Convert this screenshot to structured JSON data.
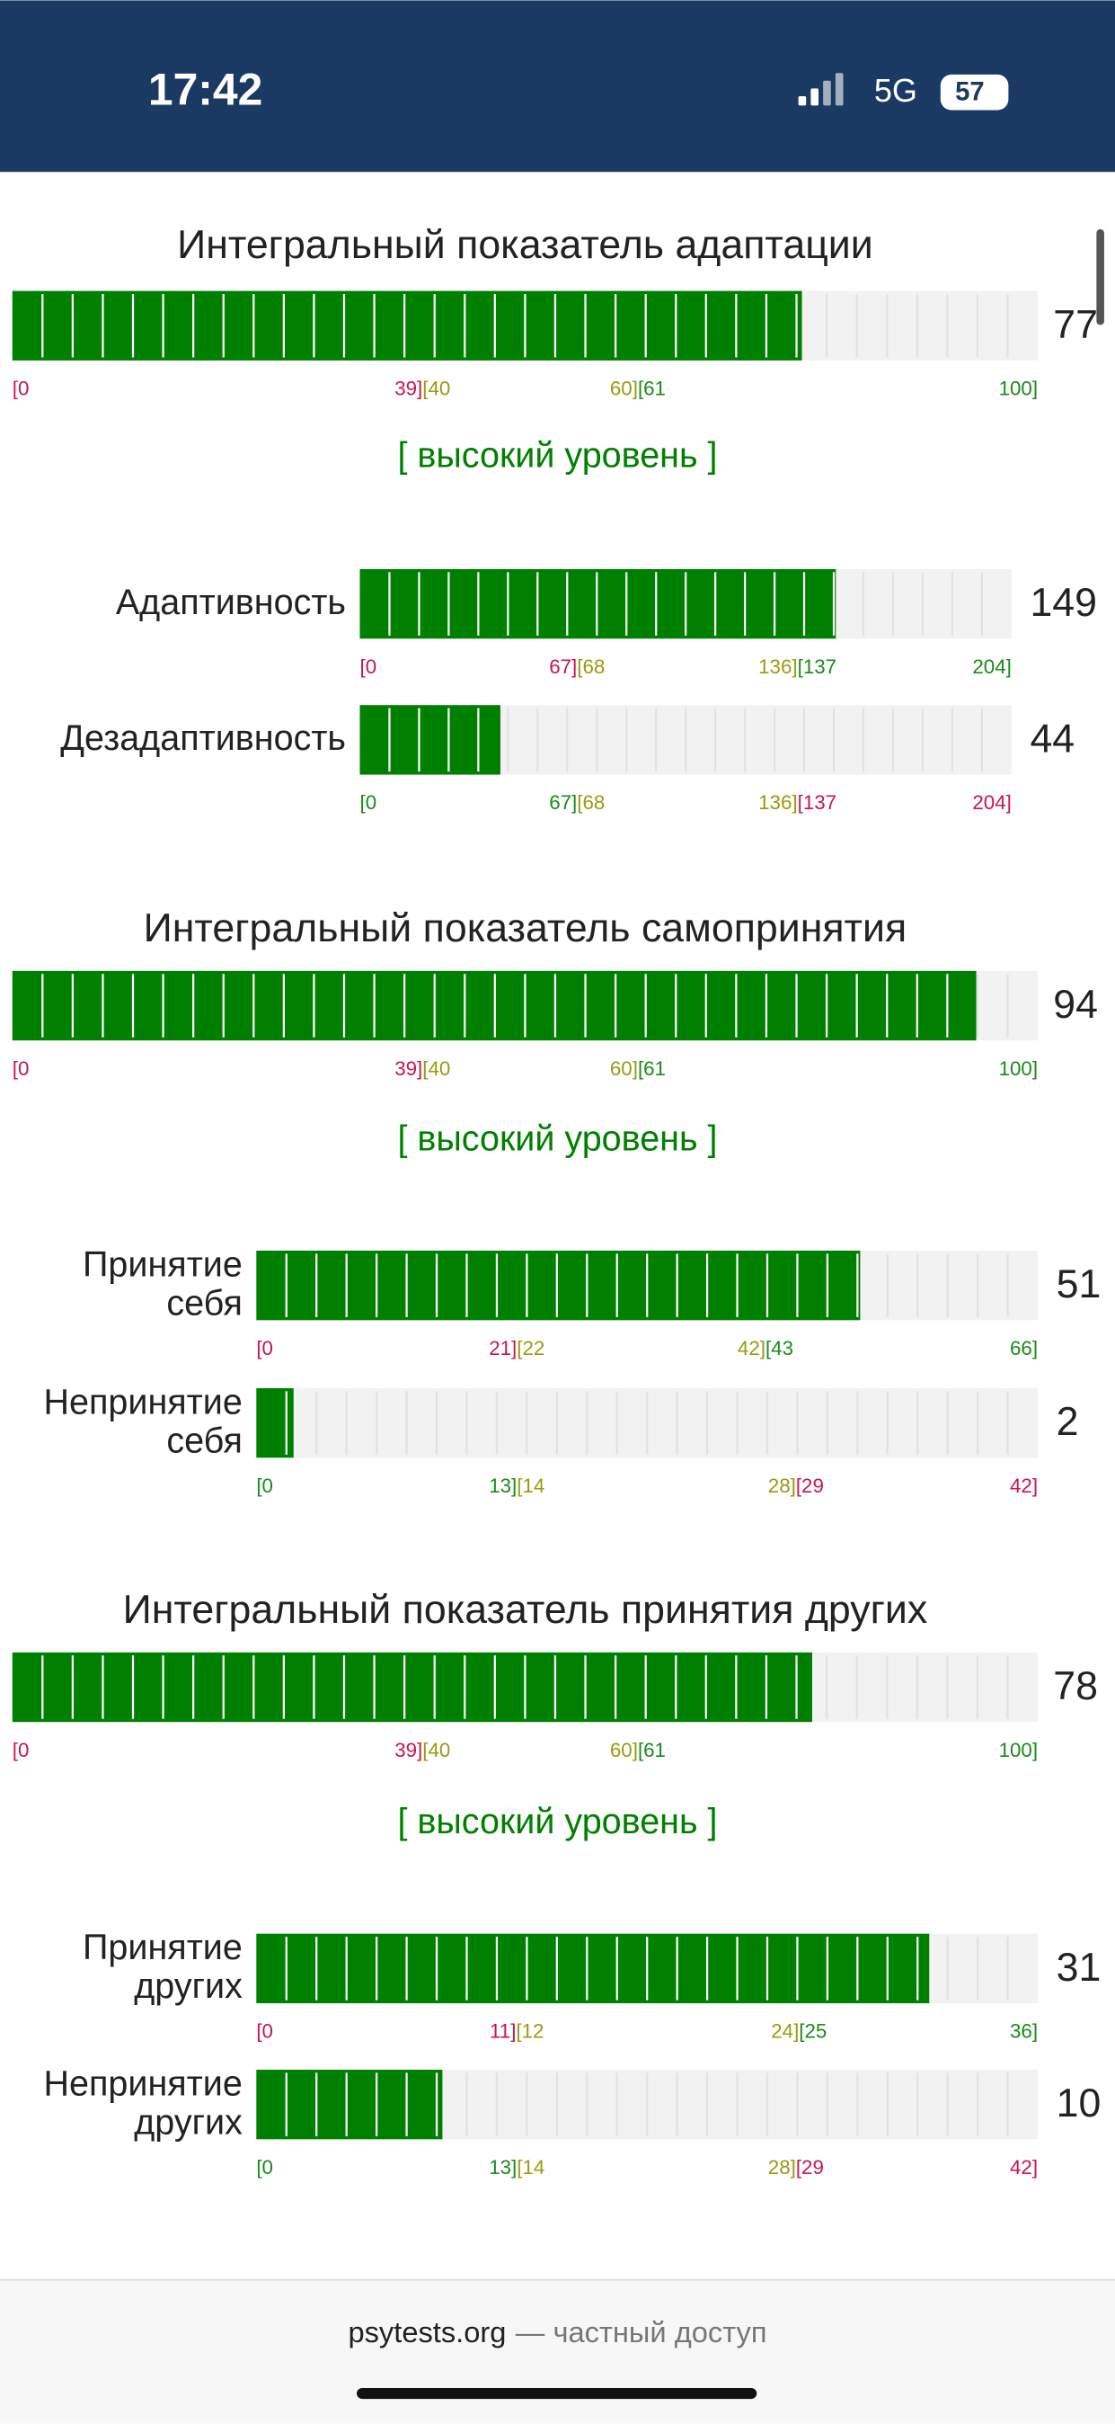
{
  "status_bar": {
    "time": "17:42",
    "network": "5G",
    "battery": "57"
  },
  "sections": [
    {
      "title": "Интегральный показатель адаптации",
      "bar": {
        "value": 77,
        "min": 0,
        "max": 100,
        "ticks": [
          {
            "value": 0,
            "parts": [
              {
                "text": "[0",
                "color": "#c8164c"
              }
            ]
          },
          {
            "value": 40,
            "parts": [
              {
                "text": "39]",
                "color": "#c8164c"
              },
              {
                "text": "[40",
                "color": "#9a9a10"
              }
            ]
          },
          {
            "value": 61,
            "parts": [
              {
                "text": "60]",
                "color": "#9a9a10"
              },
              {
                "text": "[61",
                "color": "#1a8a1a"
              }
            ]
          },
          {
            "value": 100,
            "parts": [
              {
                "text": "100]",
                "color": "#1a8a1a"
              }
            ]
          }
        ]
      },
      "level": "[ высокий уровень ]",
      "scales": [
        {
          "label": [
            "Адаптивность"
          ],
          "value": 149,
          "min": 0,
          "max": 204,
          "ticks": [
            {
              "value": 0,
              "parts": [
                {
                  "text": "[0",
                  "color": "#c8164c"
                }
              ]
            },
            {
              "value": 68,
              "parts": [
                {
                  "text": "67]",
                  "color": "#c8164c"
                },
                {
                  "text": "[68",
                  "color": "#9a9a10"
                }
              ]
            },
            {
              "value": 137,
              "parts": [
                {
                  "text": "136]",
                  "color": "#9a9a10"
                },
                {
                  "text": "[137",
                  "color": "#1a8a1a"
                }
              ]
            },
            {
              "value": 204,
              "parts": [
                {
                  "text": "204]",
                  "color": "#1a8a1a"
                }
              ]
            }
          ]
        },
        {
          "label": [
            "Дезадаптивность"
          ],
          "value": 44,
          "min": 0,
          "max": 204,
          "ticks": [
            {
              "value": 0,
              "parts": [
                {
                  "text": "[0",
                  "color": "#1a8a1a"
                }
              ]
            },
            {
              "value": 68,
              "parts": [
                {
                  "text": "67]",
                  "color": "#1a8a1a"
                },
                {
                  "text": "[68",
                  "color": "#9a9a10"
                }
              ]
            },
            {
              "value": 137,
              "parts": [
                {
                  "text": "136]",
                  "color": "#9a9a10"
                },
                {
                  "text": "[137",
                  "color": "#c8164c"
                }
              ]
            },
            {
              "value": 204,
              "parts": [
                {
                  "text": "204]",
                  "color": "#c8164c"
                }
              ]
            }
          ]
        }
      ]
    },
    {
      "title": "Интегральный показатель самопринятия",
      "bar": {
        "value": 94,
        "min": 0,
        "max": 100,
        "ticks": [
          {
            "value": 0,
            "parts": [
              {
                "text": "[0",
                "color": "#c8164c"
              }
            ]
          },
          {
            "value": 40,
            "parts": [
              {
                "text": "39]",
                "color": "#c8164c"
              },
              {
                "text": "[40",
                "color": "#9a9a10"
              }
            ]
          },
          {
            "value": 61,
            "parts": [
              {
                "text": "60]",
                "color": "#9a9a10"
              },
              {
                "text": "[61",
                "color": "#1a8a1a"
              }
            ]
          },
          {
            "value": 100,
            "parts": [
              {
                "text": "100]",
                "color": "#1a8a1a"
              }
            ]
          }
        ]
      },
      "level": "[ высокий уровень ]",
      "scales": [
        {
          "label": [
            "Принятие",
            "себя"
          ],
          "value": 51,
          "min": 0,
          "max": 66,
          "ticks": [
            {
              "value": 0,
              "parts": [
                {
                  "text": "[0",
                  "color": "#c8164c"
                }
              ]
            },
            {
              "value": 22,
              "parts": [
                {
                  "text": "21]",
                  "color": "#c8164c"
                },
                {
                  "text": "[22",
                  "color": "#9a9a10"
                }
              ]
            },
            {
              "value": 43,
              "parts": [
                {
                  "text": "42]",
                  "color": "#9a9a10"
                },
                {
                  "text": "[43",
                  "color": "#1a8a1a"
                }
              ]
            },
            {
              "value": 66,
              "parts": [
                {
                  "text": "66]",
                  "color": "#1a8a1a"
                }
              ]
            }
          ]
        },
        {
          "label": [
            "Непринятие",
            "себя"
          ],
          "value": 2,
          "min": 0,
          "max": 42,
          "ticks": [
            {
              "value": 0,
              "parts": [
                {
                  "text": "[0",
                  "color": "#1a8a1a"
                }
              ]
            },
            {
              "value": 14,
              "parts": [
                {
                  "text": "13]",
                  "color": "#1a8a1a"
                },
                {
                  "text": "[14",
                  "color": "#9a9a10"
                }
              ]
            },
            {
              "value": 29,
              "parts": [
                {
                  "text": "28]",
                  "color": "#9a9a10"
                },
                {
                  "text": "[29",
                  "color": "#c8164c"
                }
              ]
            },
            {
              "value": 42,
              "parts": [
                {
                  "text": "42]",
                  "color": "#c8164c"
                }
              ]
            }
          ]
        }
      ]
    },
    {
      "title": "Интегральный показатель принятия других",
      "bar": {
        "value": 78,
        "min": 0,
        "max": 100,
        "ticks": [
          {
            "value": 0,
            "parts": [
              {
                "text": "[0",
                "color": "#c8164c"
              }
            ]
          },
          {
            "value": 40,
            "parts": [
              {
                "text": "39]",
                "color": "#c8164c"
              },
              {
                "text": "[40",
                "color": "#9a9a10"
              }
            ]
          },
          {
            "value": 61,
            "parts": [
              {
                "text": "60]",
                "color": "#9a9a10"
              },
              {
                "text": "[61",
                "color": "#1a8a1a"
              }
            ]
          },
          {
            "value": 100,
            "parts": [
              {
                "text": "100]",
                "color": "#1a8a1a"
              }
            ]
          }
        ]
      },
      "level": "[ высокий уровень ]",
      "scales": [
        {
          "label": [
            "Принятие",
            "других"
          ],
          "value": 31,
          "min": 0,
          "max": 36,
          "ticks": [
            {
              "value": 0,
              "parts": [
                {
                  "text": "[0",
                  "color": "#c8164c"
                }
              ]
            },
            {
              "value": 12,
              "parts": [
                {
                  "text": "11]",
                  "color": "#c8164c"
                },
                {
                  "text": "[12",
                  "color": "#9a9a10"
                }
              ]
            },
            {
              "value": 25,
              "parts": [
                {
                  "text": "24]",
                  "color": "#9a9a10"
                },
                {
                  "text": "[25",
                  "color": "#1a8a1a"
                }
              ]
            },
            {
              "value": 36,
              "parts": [
                {
                  "text": "36]",
                  "color": "#1a8a1a"
                }
              ]
            }
          ]
        },
        {
          "label": [
            "Непринятие",
            "других"
          ],
          "value": 10,
          "min": 0,
          "max": 42,
          "ticks": [
            {
              "value": 0,
              "parts": [
                {
                  "text": "[0",
                  "color": "#1a8a1a"
                }
              ]
            },
            {
              "value": 14,
              "parts": [
                {
                  "text": "13]",
                  "color": "#1a8a1a"
                },
                {
                  "text": "[14",
                  "color": "#9a9a10"
                }
              ]
            },
            {
              "value": 29,
              "parts": [
                {
                  "text": "28]",
                  "color": "#9a9a10"
                },
                {
                  "text": "[29",
                  "color": "#c8164c"
                }
              ]
            },
            {
              "value": 42,
              "parts": [
                {
                  "text": "42]",
                  "color": "#c8164c"
                }
              ]
            }
          ]
        }
      ]
    }
  ],
  "footer": {
    "site": "psytests.org",
    "note": "— частный доступ"
  }
}
